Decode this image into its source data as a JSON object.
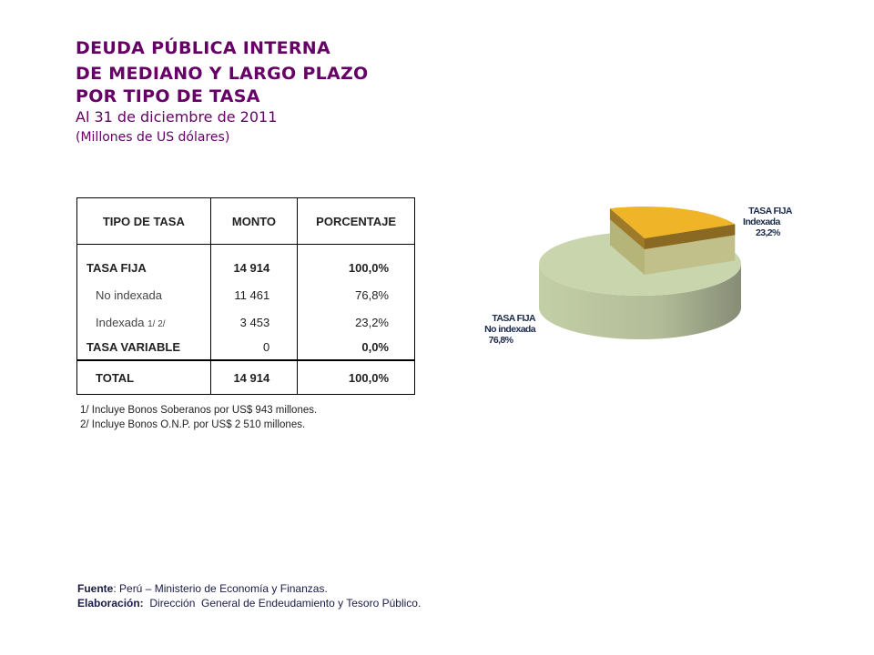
{
  "title": {
    "line1": "DEUDA PÚBLICA INTERNA",
    "line2": "DE MEDIANO Y LARGO PLAZO",
    "line3": "POR TIPO DE TASA",
    "date": "Al 31 de diciembre de 2011",
    "units": "(Millones de US dólares)"
  },
  "table": {
    "headers": [
      "TIPO DE TASA",
      "MONTO",
      "PORCENTAJE"
    ],
    "rows": [
      {
        "label": "TASA FIJA",
        "monto": "14 914",
        "pct": "100,0%"
      },
      {
        "label": "No indexada",
        "monto": "11 461",
        "pct": "76,8%"
      },
      {
        "label": "Indexada",
        "note": "1/ 2/",
        "monto": "3 453",
        "pct": "23,2%"
      },
      {
        "label": "TASA VARIABLE",
        "monto": "0",
        "pct": "0,0%"
      }
    ],
    "total": {
      "label": "TOTAL",
      "monto": "14 914",
      "pct": "100,0%"
    }
  },
  "notes": [
    "1/   Incluye Bonos  Soberanos por US$ 943 millones.",
    "2/   Incluye Bonos O.N.P. por US$ 2 510 millones."
  ],
  "footer": {
    "source_label": "Fuente",
    "source_text": ": Perú – Ministerio de Economía y Finanzas.",
    "elab_label": "Elaboración:",
    "elab_text": "  Dirección  General de Endeudamiento y Tesoro Público."
  },
  "chart_data": {
    "type": "pie",
    "slices": [
      {
        "name": "TASA FIJA No indexada",
        "line1": "TASA FIJA",
        "line2": "No indexada",
        "value": 76.8,
        "label": "76,8%",
        "color": "#c9d6ad"
      },
      {
        "name": "TASA FIJA Indexada",
        "line1": "TASA FIJA",
        "line2": "Indexada",
        "value": 23.2,
        "label": "23,2%",
        "color": "#f0b428"
      }
    ]
  }
}
